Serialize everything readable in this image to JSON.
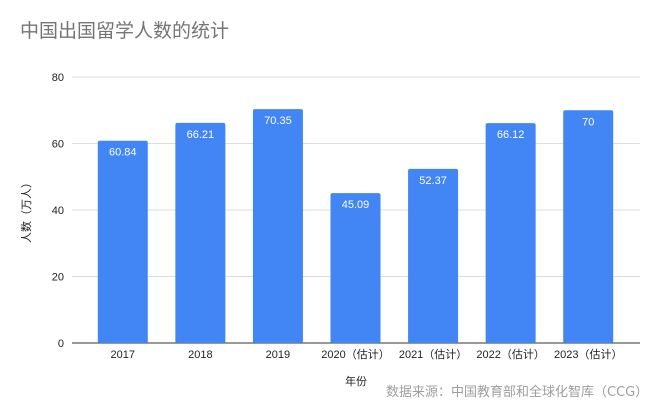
{
  "chart_data": {
    "type": "bar",
    "title": "中国出国留学人数的统计",
    "xlabel": "年份",
    "ylabel": "人数（万人）",
    "categories": [
      "2017",
      "2018",
      "2019",
      "2020（估计）",
      "2021（估计）",
      "2022（估计）",
      "2023（估计）"
    ],
    "values": [
      60.84,
      66.21,
      70.35,
      45.09,
      52.37,
      66.12,
      70
    ],
    "data_labels": [
      "60.84",
      "66.21",
      "70.35",
      "45.09",
      "52.37",
      "66.12",
      "70"
    ],
    "ylim": [
      0,
      80
    ],
    "yticks": [
      0,
      20,
      40,
      60,
      80
    ],
    "grid": true,
    "legend": "none",
    "bar_color": "#4285f4",
    "source": "数据来源：中国教育部和全球化智库（CCG）"
  }
}
